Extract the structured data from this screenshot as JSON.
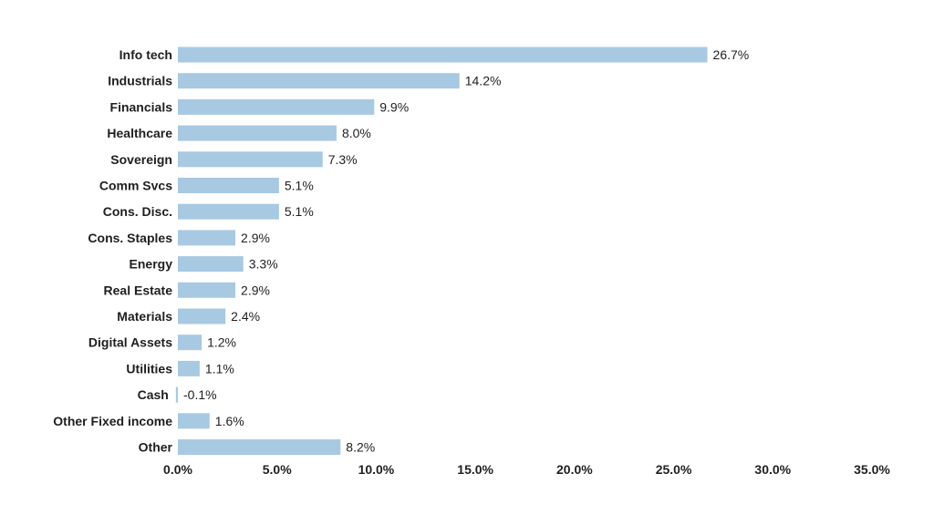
{
  "chart_data": {
    "type": "bar",
    "orientation": "horizontal",
    "title": "",
    "xlabel": "",
    "ylabel": "",
    "categories": [
      "Info tech",
      "Industrials",
      "Financials",
      "Healthcare",
      "Sovereign",
      "Comm Svcs",
      "Cons. Disc.",
      "Cons. Staples",
      "Energy",
      "Real Estate",
      "Materials",
      "Digital Assets",
      "Utilities",
      "Cash",
      "Other Fixed income",
      "Other"
    ],
    "values": [
      26.7,
      14.2,
      9.9,
      8.0,
      7.3,
      5.1,
      5.1,
      2.9,
      3.3,
      2.9,
      2.4,
      1.2,
      1.1,
      -0.1,
      1.6,
      8.2
    ],
    "value_labels": [
      "26.7%",
      "14.2%",
      "9.9%",
      "8.0%",
      "7.3%",
      "5.1%",
      "5.1%",
      "2.9%",
      "3.3%",
      "2.9%",
      "2.4%",
      "1.2%",
      "1.1%",
      "-0.1%",
      "1.6%",
      "8.2%"
    ],
    "xlim": [
      0,
      35
    ],
    "x_ticks": [
      0,
      5,
      10,
      15,
      20,
      25,
      30,
      35
    ],
    "x_tick_labels": [
      "0.0%",
      "5.0%",
      "10.0%",
      "15.0%",
      "20.0%",
      "25.0%",
      "30.0%",
      "35.0%"
    ],
    "grid": false,
    "legend": "none",
    "bar_color": "#a8c9e2",
    "text_color": "#1f1f1f"
  }
}
